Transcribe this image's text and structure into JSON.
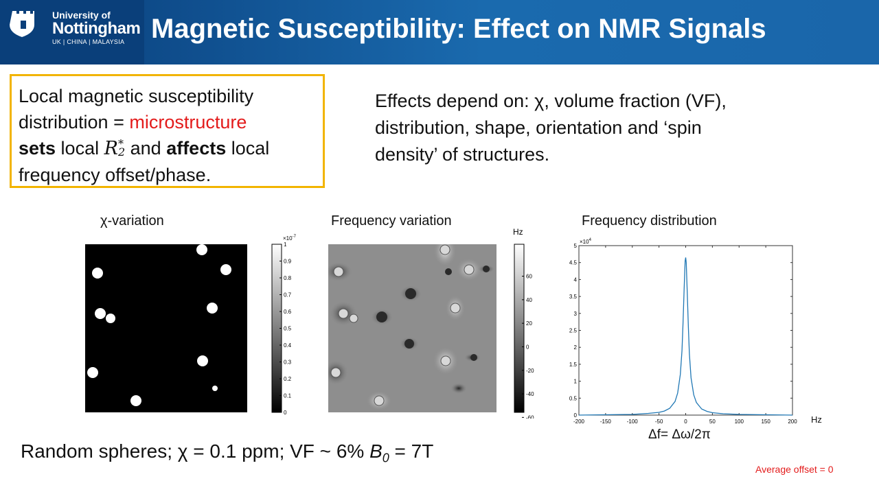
{
  "header": {
    "uni_line1": "University of",
    "uni_line2": "Nottingham",
    "uni_line3": "UK | CHINA | MALAYSIA",
    "title": "Magnetic Susceptibility: Effect on NMR Signals"
  },
  "box": {
    "line1": "Local magnetic susceptibility",
    "line2a": "distribution = ",
    "line2b": "microstructure",
    "line3a": "sets",
    "line3b": " local ",
    "line3c": " and ",
    "line3d": "affects",
    "line3e": " local",
    "line4": "frequency offset/phase.",
    "r2_symbol": "R",
    "r2_sup": "*",
    "r2_sub": "2"
  },
  "effects": {
    "line1": "Effects depend on: χ, volume fraction (VF),",
    "line2": "distribution, shape, orientation and ‘spin",
    "line3": "density’ of structures."
  },
  "panels": {
    "chi_caption": "χ-variation",
    "freq_caption": "Frequency variation",
    "dist_caption": "Frequency distribution",
    "chi_colorbar": {
      "exponent": "×10",
      "exponent_power": "-7",
      "ticks": [
        "1",
        "0.9",
        "0.8",
        "0.7",
        "0.6",
        "0.5",
        "0.4",
        "0.3",
        "0.2",
        "0.1",
        "0"
      ]
    },
    "freq_colorbar": {
      "unit": "Hz",
      "ticks": [
        "60",
        "40",
        "20",
        "0",
        "-20",
        "-40",
        "-60"
      ]
    }
  },
  "chart_data": {
    "type": "line",
    "title": "Frequency distribution",
    "xlabel": "Hz",
    "ylabel": "",
    "y_exponent": "×10",
    "y_exponent_power": "4",
    "xlim": [
      -200,
      200
    ],
    "ylim": [
      0,
      5
    ],
    "x_ticks": [
      "-200",
      "-150",
      "-100",
      "-50",
      "0",
      "50",
      "100",
      "150",
      "200"
    ],
    "y_ticks": [
      "0",
      "0.5",
      "1",
      "1.5",
      "2",
      "2.5",
      "3",
      "3.5",
      "4",
      "4.5",
      "5"
    ],
    "series": [
      {
        "color": "#1f77b4",
        "x": [
          -200,
          -150,
          -100,
          -70,
          -50,
          -40,
          -30,
          -20,
          -15,
          -10,
          -7,
          -5,
          -3,
          -1,
          0,
          1,
          3,
          5,
          7,
          10,
          15,
          20,
          30,
          40,
          50,
          70,
          100,
          150,
          200
        ],
        "y": [
          0,
          0.01,
          0.02,
          0.05,
          0.08,
          0.12,
          0.2,
          0.4,
          0.65,
          1.2,
          1.9,
          2.7,
          3.7,
          4.55,
          4.65,
          4.5,
          3.6,
          2.6,
          1.8,
          1.1,
          0.6,
          0.37,
          0.18,
          0.11,
          0.07,
          0.04,
          0.02,
          0.01,
          0
        ]
      }
    ]
  },
  "dist_axis_label": "Δf= Δω/2π",
  "bottom": {
    "text_a": "Random spheres; χ = 0.1 ppm;  VF ~ 6%  ",
    "b0_sym": "B",
    "b0_sub": "0",
    "text_b": " = 7T"
  },
  "footer": {
    "avg_offset": "Average offset = 0"
  },
  "colors": {
    "header_dark": "#0a3f7a",
    "header_light": "#1a6aae",
    "box_border": "#f2b400",
    "accent_red": "#e31b1b",
    "plot_line": "#1f77b4"
  }
}
